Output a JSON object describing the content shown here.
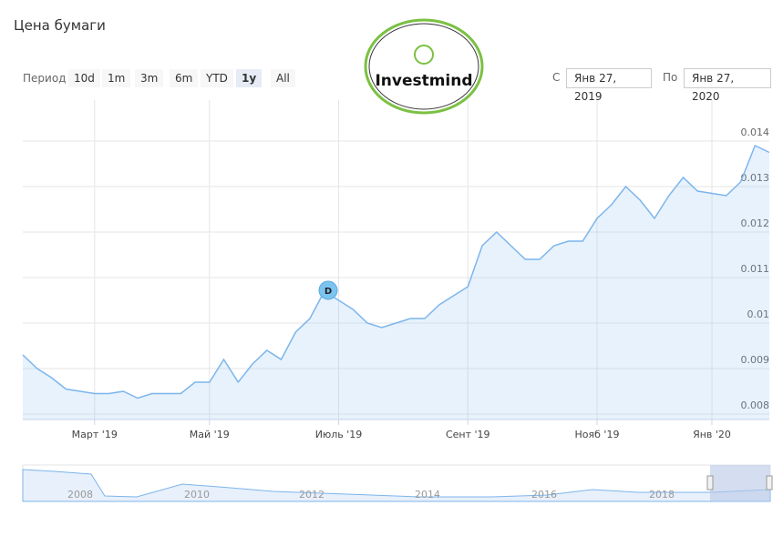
{
  "header": {
    "title": "Цена бумаги",
    "period_label": "Период",
    "periods": [
      "10d",
      "1m",
      "3m",
      "6m",
      "YTD",
      "1y",
      "All"
    ],
    "active_period": 5,
    "from_label": "С",
    "from": "Янв 27, 2019",
    "to_label": "По",
    "to": "Янв 27, 2020"
  },
  "logo": "Investmind",
  "flag": "D",
  "navigator": {
    "years": [
      "2008",
      "2010",
      "2012",
      "2014",
      "2016",
      "2018"
    ]
  },
  "chart_data": {
    "type": "line",
    "categories": [
      null,
      null,
      null,
      null,
      null,
      "Март '19",
      null,
      null,
      null,
      null,
      null,
      null,
      null,
      "Май '19",
      null,
      null,
      null,
      null,
      null,
      null,
      null,
      null,
      "Июль '19",
      null,
      null,
      null,
      null,
      null,
      null,
      null,
      null,
      "Сент '19",
      null,
      null,
      null,
      null,
      null,
      null,
      null,
      null,
      "Нояб '19",
      null,
      null,
      null,
      null,
      null,
      null,
      null,
      "Янв '20",
      null,
      null,
      null,
      null
    ],
    "series": [
      {
        "color": "#7cb5ec",
        "values": [
          0.0093,
          0.009,
          0.0088,
          0.00855,
          0.0085,
          0.00845,
          0.00845,
          0.0085,
          0.00835,
          0.00845,
          0.00845,
          0.00845,
          0.0087,
          0.0087,
          0.0092,
          0.0087,
          0.0091,
          0.0094,
          0.0092,
          0.0098,
          0.0101,
          0.0107,
          0.0105,
          0.0103,
          0.01,
          0.0099,
          0.01,
          0.0101,
          0.0101,
          0.0104,
          0.0106,
          0.0108,
          0.0117,
          0.012,
          0.0117,
          0.0114,
          0.0114,
          0.0117,
          0.0118,
          0.0118,
          0.0123,
          0.0126,
          0.013,
          0.0127,
          0.0123,
          0.0128,
          0.0132,
          0.0129,
          0.01285,
          0.0128,
          0.0131,
          0.0139,
          0.01375
        ]
      }
    ],
    "ylim": [
      0.00788,
      0.0149
    ],
    "yticks": [
      0.008,
      0.009,
      0.01,
      0.011,
      0.012,
      0.013,
      0.014
    ],
    "grid": true
  }
}
